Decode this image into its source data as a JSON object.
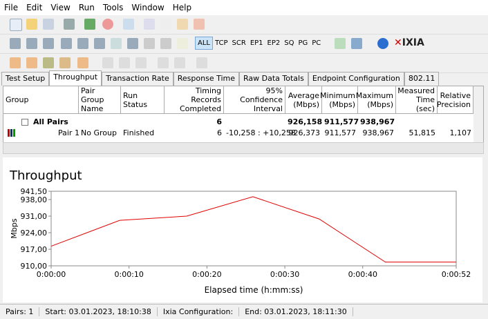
{
  "menu": [
    "File",
    "Edit",
    "View",
    "Run",
    "Tools",
    "Window",
    "Help"
  ],
  "toolbar": {
    "filters": [
      "ALL",
      "TCP",
      "SCR",
      "EP1",
      "EP2",
      "SQ",
      "PG",
      "PC"
    ],
    "logo": "IXIA"
  },
  "tabs": [
    "Test Setup",
    "Throughput",
    "Transaction Rate",
    "Response Time",
    "Raw Data Totals",
    "Endpoint Configuration",
    "802.11"
  ],
  "table": {
    "columns": [
      "Group",
      "Pair Group\nName",
      "Run Status",
      "Timing Records\nCompleted",
      "95% Confidence\nInterval",
      "Average\n(Mbps)",
      "Minimum\n(Mbps)",
      "Maximum\n(Mbps)",
      "Measured\nTime (sec)",
      "Relative\nPrecision"
    ],
    "rows": [
      [
        "All Pairs",
        null,
        null,
        "6",
        null,
        "926,158",
        "911,577",
        "938,967",
        null,
        null
      ],
      [
        "Pair 1",
        "No Group",
        "Finished",
        "6",
        "-10,258 : +10,258",
        "926,373",
        "911,577",
        "938,967",
        "51,815",
        "1,107"
      ]
    ]
  },
  "chart_data": {
    "type": "line",
    "title": "Throughput",
    "x_label": "Elapsed time (h:mm:ss)",
    "y_label": "Mbps",
    "x": [
      0,
      8.8,
      17.4,
      25.9,
      34.4,
      42.9,
      52
    ],
    "series": [
      {
        "name": "Pair 1",
        "color": "#e00000",
        "values": [
          918.3,
          929.2,
          931.0,
          939.2,
          929.8,
          911.6,
          911.6
        ]
      }
    ],
    "xlim": [
      0,
      52
    ],
    "xticks": [
      {
        "value": 0,
        "label": "0:00:00"
      },
      {
        "value": 10,
        "label": "0:00:10"
      },
      {
        "value": 20,
        "label": "0:00:20"
      },
      {
        "value": 30,
        "label": "0:00:30"
      },
      {
        "value": 40,
        "label": "0:00:40"
      },
      {
        "value": 52,
        "label": "0:00:52"
      }
    ],
    "ylim": [
      910,
      941.5
    ],
    "yticks": [
      {
        "value": 910,
        "label": "910,00"
      },
      {
        "value": 917,
        "label": "917,00"
      },
      {
        "value": 924,
        "label": "924,00"
      },
      {
        "value": 931,
        "label": "931,00"
      },
      {
        "value": 938,
        "label": "938,00"
      },
      {
        "value": 941.5,
        "label": "941,50"
      }
    ],
    "grid": false
  },
  "status": [
    "Pairs: 1",
    "Start: 03.01.2023, 18:10:38",
    "Ixia Configuration:",
    "End: 03.01.2023, 18:11:30"
  ]
}
